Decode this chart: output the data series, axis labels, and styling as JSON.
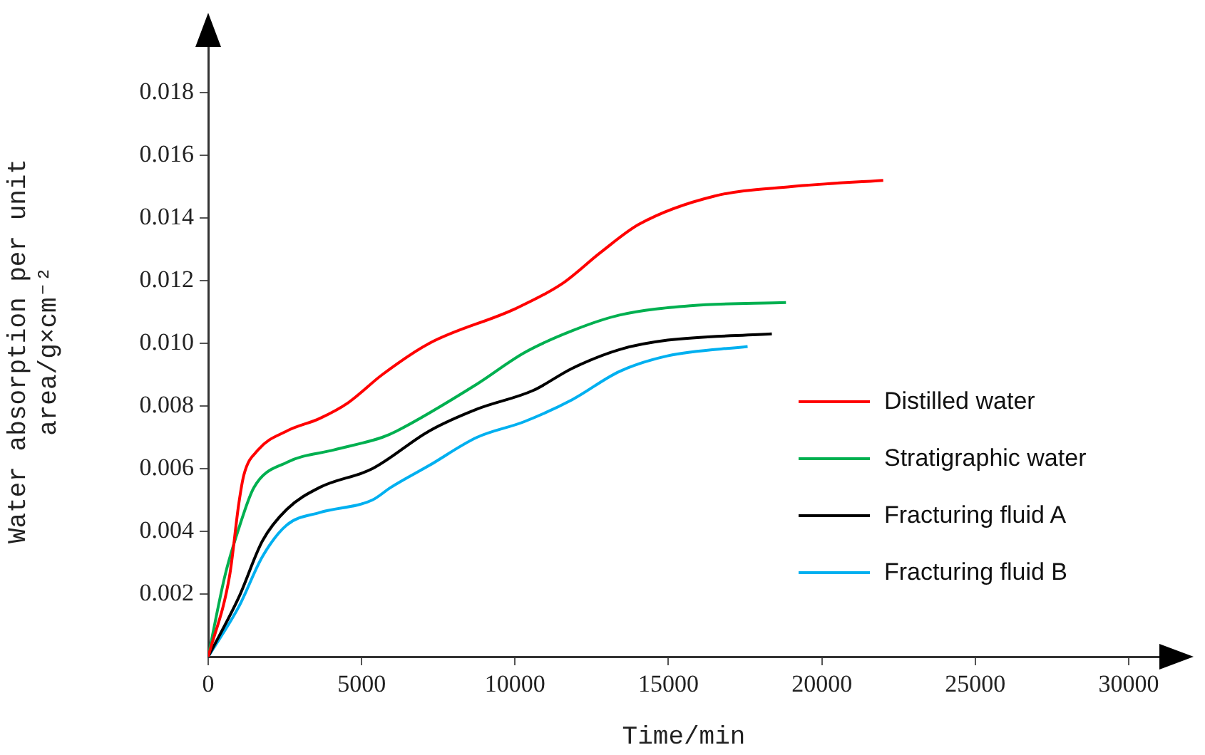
{
  "chart_data": {
    "type": "line",
    "xlabel": "Time/min",
    "ylabel": [
      "Water absorption per unit",
      "area/g×cm⁻²"
    ],
    "xlim": [
      0,
      31000
    ],
    "xticks": [
      0,
      5000,
      10000,
      15000,
      20000,
      25000,
      30000
    ],
    "ylim": [
      0,
      0.0195
    ],
    "yticks": [
      0.002,
      0.004,
      0.006,
      0.008,
      {
        "value": 0.01,
        "label": "0.010"
      },
      0.012,
      0.014,
      0.016,
      0.018
    ],
    "grid": false,
    "legend": "center right",
    "marker": "none",
    "line_style": "solid",
    "series": [
      {
        "name": "Distilled water",
        "color": "#ff0000",
        "x": [
          0,
          700,
          1000,
          1163,
          1628,
          2558,
          3627,
          4557,
          5673,
          7208,
          10000,
          11532,
          12790,
          14043,
          16508,
          19000,
          22000
        ],
        "values": [
          0,
          0.0026,
          0.0049,
          0.0058,
          0.0066,
          0.0072,
          0.0076,
          0.0081,
          0.009,
          0.01,
          0.0111,
          0.0119,
          0.0129,
          0.0138,
          0.0147,
          0.015,
          0.0152
        ]
      },
      {
        "name": "Stratigraphic water",
        "color": "#00b050",
        "x": [
          0,
          550,
          1000,
          1490,
          2558,
          4100,
          5670,
          6140,
          8760,
          10300,
          11860,
          13400,
          15720,
          18830
        ],
        "values": [
          0,
          0.0026,
          0.0041,
          0.0054,
          0.0062,
          0.0066,
          0.007,
          0.0072,
          0.0087,
          0.0097,
          0.0104,
          0.0109,
          0.0112,
          0.0113
        ]
      },
      {
        "name": "Fracturing fluid A",
        "color": "#000000",
        "x": [
          0,
          1000,
          1770,
          2558,
          3630,
          5350,
          7200,
          8760,
          10600,
          11860,
          13400,
          14970,
          18370
        ],
        "values": [
          0,
          0.0019,
          0.0037,
          0.0047,
          0.0054,
          0.006,
          0.0072,
          0.0079,
          0.0085,
          0.0092,
          0.0098,
          0.0101,
          0.0103
        ]
      },
      {
        "name": "Fracturing fluid B",
        "color": "#00b0f0",
        "x": [
          0,
          1000,
          1770,
          2558,
          3630,
          5350,
          5950,
          7200,
          8760,
          10300,
          11860,
          13400,
          14970,
          17580
        ],
        "values": [
          0,
          0.0016,
          0.0032,
          0.0042,
          0.0046,
          0.005,
          0.0054,
          0.0061,
          0.007,
          0.0075,
          0.0082,
          0.0091,
          0.0096,
          0.0099
        ]
      }
    ]
  }
}
